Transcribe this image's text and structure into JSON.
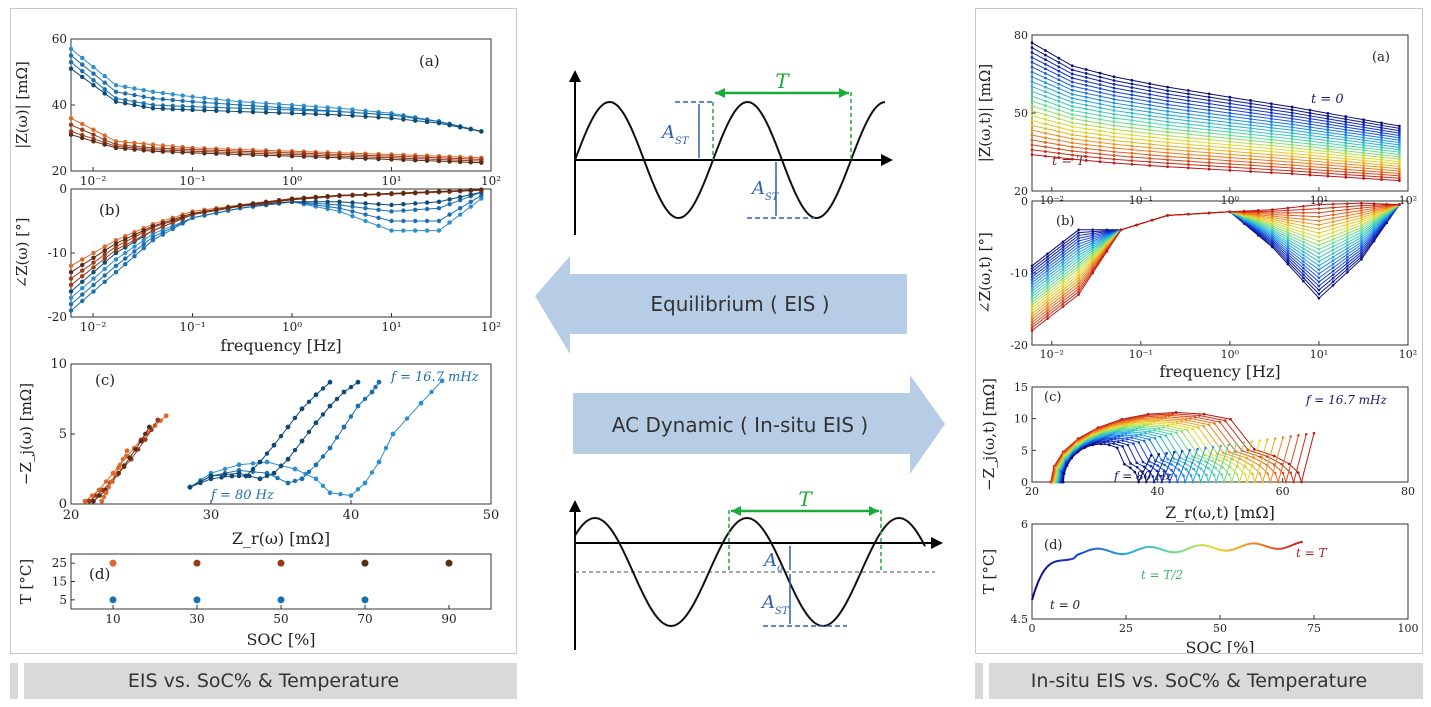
{
  "left_caption": "EIS vs. SoC% & Temperature",
  "right_caption": "In-situ EIS vs. SoC% & Temperature",
  "arrows": {
    "equilibrium": "Equilibrium ( EIS )",
    "ac_dynamic": "AC Dynamic ( In-situ EIS )"
  },
  "waveforms": {
    "top": {
      "period": "T",
      "amplitude_1": "A",
      "amplitude_1_sub": "ST",
      "amplitude_2": "A",
      "amplitude_2_sub": "ST"
    },
    "bottom": {
      "period": "T",
      "offset": "A",
      "offset_sub": "o",
      "amplitude": "A",
      "amplitude_sub": "ST"
    }
  },
  "colors": {
    "blue_dark": "#0d4a78",
    "blue": "#1a6fb0",
    "blue_light": "#2e8fd0",
    "orange": "#e0672a",
    "brown": "#9b3a1a",
    "brown_dark": "#5a2a14",
    "arrow_fill": "#b7cde6",
    "green": "#1aaa3a",
    "wave_blue": "#2e5fb0",
    "caption_bg": "#d9d9d9"
  },
  "chart_data": [
    {
      "id": "left-a",
      "type": "line",
      "panel_label": "(a)",
      "xlabel": "",
      "ylabel": "|Z(ω)| [mΩ]",
      "xscale": "log",
      "xlim": [
        0.006,
        100
      ],
      "ylim": [
        20,
        60
      ],
      "yticks": [
        "20",
        "40",
        "60"
      ],
      "xticks": [
        "10⁻²",
        "10⁻¹",
        "10⁰",
        "10¹",
        "10²"
      ],
      "x": [
        0.006,
        0.017,
        0.04,
        0.1,
        0.3,
        1,
        3,
        10,
        30,
        80
      ],
      "series": [
        {
          "values": [
            57,
            46,
            44,
            42.5,
            41,
            40,
            39,
            37.5,
            35,
            32
          ]
        },
        {
          "values": [
            55,
            44,
            42,
            41,
            40,
            39,
            38,
            37,
            35,
            32
          ]
        },
        {
          "values": [
            53,
            42,
            40,
            39.5,
            39,
            38.5,
            38,
            37,
            35,
            32
          ]
        },
        {
          "values": [
            51,
            41,
            39,
            38.5,
            38,
            37.5,
            37,
            36,
            34.5,
            32
          ]
        },
        {
          "values": [
            36,
            29,
            28,
            27,
            26.5,
            26,
            25.5,
            25,
            24.5,
            24
          ]
        },
        {
          "values": [
            34,
            28,
            27,
            26.5,
            26,
            25.5,
            25,
            24.5,
            24,
            23.5
          ]
        },
        {
          "values": [
            32,
            27.5,
            26.5,
            26,
            25.5,
            25,
            24.5,
            24,
            23.5,
            23
          ]
        },
        {
          "values": [
            31,
            27,
            26,
            25.5,
            25,
            24.5,
            24,
            23.5,
            23,
            22.5
          ]
        }
      ]
    },
    {
      "id": "left-b",
      "type": "line",
      "panel_label": "(b)",
      "xlabel": "frequency [Hz]",
      "ylabel": "∠Z(ω) [°]",
      "xscale": "log",
      "xlim": [
        0.006,
        100
      ],
      "ylim": [
        -20,
        0
      ],
      "yticks": [
        "-20",
        "-10",
        "0"
      ],
      "xticks": [
        "10⁻²",
        "10⁻¹",
        "10⁰",
        "10¹",
        "10²"
      ],
      "x": [
        0.006,
        0.017,
        0.04,
        0.1,
        0.3,
        1,
        3,
        10,
        30,
        80
      ],
      "series": [
        {
          "values": [
            -17,
            -11,
            -7,
            -4.5,
            -3,
            -2,
            -3.5,
            -6.5,
            -6.5,
            -1.5
          ]
        },
        {
          "values": [
            -18,
            -12,
            -7.5,
            -4.5,
            -3,
            -2,
            -3,
            -5,
            -5,
            -1
          ]
        },
        {
          "values": [
            -19,
            -13,
            -8,
            -4.5,
            -3,
            -2,
            -2.5,
            -3.5,
            -3,
            -0.5
          ]
        },
        {
          "values": [
            -16,
            -10,
            -6.5,
            -4,
            -2.7,
            -2,
            -2,
            -2.5,
            -2,
            -0.5
          ]
        },
        {
          "values": [
            -12,
            -8,
            -5.5,
            -3.5,
            -2.5,
            -1.5,
            -1,
            -0.8,
            -0.5,
            -0.2
          ]
        },
        {
          "values": [
            -14,
            -9,
            -6,
            -4,
            -2.5,
            -1.5,
            -1,
            -0.7,
            -0.4,
            -0.1
          ]
        },
        {
          "values": [
            -15,
            -9.5,
            -6.5,
            -4,
            -2.7,
            -1.7,
            -1.1,
            -0.8,
            -0.5,
            -0.2
          ]
        },
        {
          "values": [
            -13,
            -8.5,
            -5.8,
            -3.8,
            -2.6,
            -1.6,
            -1.0,
            -0.7,
            -0.4,
            -0.1
          ]
        }
      ]
    },
    {
      "id": "left-c",
      "type": "scatter",
      "panel_label": "(c)",
      "xlabel": "Z_r(ω) [mΩ]",
      "ylabel": "−Z_j(ω) [mΩ]",
      "xlim": [
        20,
        50
      ],
      "ylim": [
        0,
        10
      ],
      "xticks": [
        "20",
        "30",
        "40",
        "50"
      ],
      "yticks": [
        "0",
        "5",
        "10"
      ],
      "annotations": [
        {
          "text": "f = 16.7 mHz"
        },
        {
          "text": "f = 80 Hz"
        }
      ],
      "series": [
        {
          "x": [
            28.5,
            30,
            32,
            34,
            36,
            37.5,
            38.5,
            40,
            41,
            42,
            43,
            45,
            46.5
          ],
          "y": [
            1.2,
            2.2,
            2.8,
            3,
            2.5,
            1.8,
            0.8,
            0.6,
            1.5,
            3,
            5,
            7.2,
            8.8
          ]
        },
        {
          "x": [
            28.5,
            30,
            32,
            34,
            35.5,
            36.5,
            37.5,
            38.5,
            39.5,
            40.5,
            41.5,
            42
          ],
          "y": [
            1.2,
            2,
            2.4,
            2.2,
            1.5,
            1.8,
            2.8,
            4,
            5.5,
            7,
            8,
            8.7
          ]
        },
        {
          "x": [
            28.5,
            30,
            32,
            33.5,
            34.5,
            35.5,
            36.5,
            37.5,
            38.5,
            39.5,
            40.5
          ],
          "y": [
            1.2,
            2,
            2.2,
            1.8,
            2.2,
            3.2,
            4.5,
            5.8,
            7,
            8,
            8.7
          ]
        },
        {
          "x": [
            28.5,
            30,
            31.5,
            32.5,
            33.5,
            34.5,
            35.5,
            36.5,
            37.5,
            38.5
          ],
          "y": [
            1.2,
            1.8,
            2,
            2,
            3,
            4.2,
            5.5,
            6.8,
            7.8,
            8.7
          ]
        },
        {
          "x": [
            21,
            22,
            23,
            24,
            25,
            26,
            26.8
          ],
          "y": [
            0.2,
            1,
            2.2,
            3.4,
            4.6,
            5.6,
            6.3
          ]
        },
        {
          "x": [
            21.3,
            22.3,
            23.3,
            24.3,
            25.3,
            26.2
          ],
          "y": [
            0.2,
            1,
            2.1,
            3.2,
            4.6,
            6
          ]
        },
        {
          "x": [
            21.6,
            22.5,
            23.4,
            24.2,
            25,
            25.6
          ],
          "y": [
            0.2,
            1,
            2.2,
            3.3,
            4.5,
            5.5
          ]
        },
        {
          "x": [
            22.2,
            22.5,
            22.9,
            23.4,
            24
          ],
          "y": [
            0.2,
            0.8,
            1.6,
            2.6,
            3.8
          ]
        }
      ]
    },
    {
      "id": "left-d",
      "type": "scatter",
      "panel_label": "(d)",
      "xlabel": "SOC [%]",
      "ylabel": "T [°C]",
      "xlim": [
        0,
        100
      ],
      "ylim": [
        0,
        30
      ],
      "xticks": [
        "10",
        "30",
        "50",
        "70",
        "90"
      ],
      "yticks": [
        "5",
        "15",
        "25"
      ],
      "series": [
        {
          "x": [
            10,
            30,
            50,
            70
          ],
          "y": [
            5,
            5,
            5,
            5
          ]
        },
        {
          "x": [
            10,
            30,
            50,
            70,
            90
          ],
          "y": [
            25,
            25,
            25,
            25,
            25
          ]
        }
      ]
    },
    {
      "id": "right-a",
      "type": "line",
      "panel_label": "(a)",
      "xlabel": "",
      "ylabel": "|Z(ω,t)| [mΩ]",
      "xscale": "log",
      "xlim": [
        0.006,
        100
      ],
      "ylim": [
        20,
        80
      ],
      "yticks": [
        "20",
        "50",
        "80"
      ],
      "xticks": [
        "10⁻²",
        "10⁻¹",
        "10⁰",
        "10¹",
        "10²"
      ],
      "annotations": [
        {
          "text": "t = 0"
        },
        {
          "text": "t = T"
        }
      ],
      "series_count": 24,
      "top_values": [
        77,
        72,
        70,
        68,
        58,
        49
      ],
      "bottom_values": [
        36,
        30,
        29,
        28,
        26,
        25
      ]
    },
    {
      "id": "right-b",
      "type": "line",
      "panel_label": "(b)",
      "xlabel": "frequency [Hz]",
      "ylabel": "∠Z(ω,t) [°]",
      "xscale": "log",
      "xlim": [
        0.006,
        100
      ],
      "ylim": [
        -20,
        0
      ],
      "yticks": [
        "-20",
        "-10",
        "0"
      ],
      "xticks": [
        "10⁻²",
        "10⁻¹",
        "10⁰",
        "10¹",
        "10²"
      ],
      "series_count": 24
    },
    {
      "id": "right-c",
      "type": "scatter",
      "panel_label": "(c)",
      "xlabel": "Z_r(ω,t) [mΩ]",
      "ylabel": "−Z_j(ω,t) [mΩ]",
      "xlim": [
        20,
        80
      ],
      "ylim": [
        0,
        15
      ],
      "xticks": [
        "20",
        "40",
        "60",
        "80"
      ],
      "yticks": [
        "0",
        "5",
        "10",
        "15"
      ],
      "annotations": [
        {
          "text": "f = 16.7 mHz"
        },
        {
          "text": "f = 80 Hz"
        }
      ],
      "series_count": 22
    },
    {
      "id": "right-d",
      "type": "line",
      "panel_label": "(d)",
      "xlabel": "SOC [%]",
      "ylabel": "T [°C]",
      "xlim": [
        0,
        100
      ],
      "ylim": [
        4.5,
        6
      ],
      "xticks": [
        "0",
        "25",
        "50",
        "75",
        "100"
      ],
      "yticks": [
        "4.5",
        "6"
      ],
      "annotations": [
        {
          "text": "t = 0"
        },
        {
          "text": "t = T/2"
        },
        {
          "text": "t = T"
        }
      ]
    }
  ]
}
